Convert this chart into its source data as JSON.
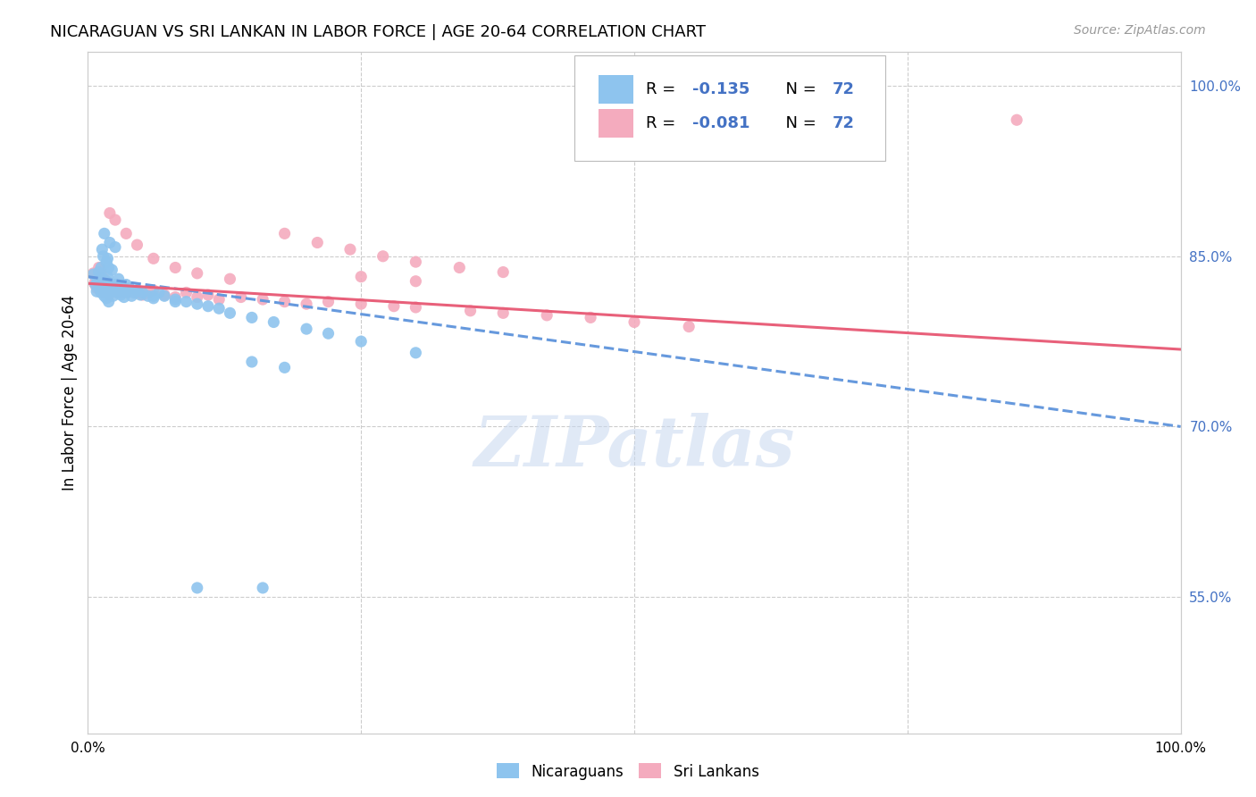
{
  "title": "NICARAGUAN VS SRI LANKAN IN LABOR FORCE | AGE 20-64 CORRELATION CHART",
  "source": "Source: ZipAtlas.com",
  "ylabel": "In Labor Force | Age 20-64",
  "xlim": [
    0.0,
    1.0
  ],
  "ylim": [
    0.43,
    1.03
  ],
  "color_nicaraguan": "#8EC4EE",
  "color_srilankan": "#F4ABBE",
  "color_trendline_nicaraguan": "#6699DD",
  "color_trendline_srilankan": "#E8607A",
  "color_grid": "#CCCCCC",
  "color_blue_text": "#4472C4",
  "watermark_color": "#C8D8F0",
  "background_color": "#FFFFFF",
  "nic_trend_start": 0.832,
  "nic_trend_end": 0.7,
  "sri_trend_start": 0.826,
  "sri_trend_end": 0.768,
  "nicaraguan_x": [
    0.005,
    0.007,
    0.008,
    0.009,
    0.01,
    0.01,
    0.011,
    0.012,
    0.013,
    0.013,
    0.014,
    0.015,
    0.015,
    0.016,
    0.017,
    0.017,
    0.018,
    0.018,
    0.019,
    0.02,
    0.02,
    0.021,
    0.022,
    0.023,
    0.025,
    0.027,
    0.028,
    0.03,
    0.032,
    0.033,
    0.035,
    0.038,
    0.04,
    0.042,
    0.045,
    0.048,
    0.05,
    0.055,
    0.06,
    0.065,
    0.07,
    0.08,
    0.09,
    0.1,
    0.11,
    0.12,
    0.13,
    0.15,
    0.17,
    0.2,
    0.22,
    0.25,
    0.3,
    0.15,
    0.18,
    0.013,
    0.015,
    0.018,
    0.02,
    0.025,
    0.012,
    0.014,
    0.017,
    0.019,
    0.022,
    0.028,
    0.035,
    0.045,
    0.06,
    0.08,
    0.1,
    0.16
  ],
  "nicaraguan_y": [
    0.834,
    0.825,
    0.819,
    0.828,
    0.836,
    0.822,
    0.83,
    0.818,
    0.825,
    0.831,
    0.82,
    0.827,
    0.815,
    0.822,
    0.828,
    0.813,
    0.819,
    0.832,
    0.81,
    0.826,
    0.818,
    0.823,
    0.82,
    0.815,
    0.825,
    0.818,
    0.822,
    0.816,
    0.82,
    0.814,
    0.819,
    0.822,
    0.815,
    0.818,
    0.82,
    0.816,
    0.818,
    0.815,
    0.813,
    0.818,
    0.815,
    0.812,
    0.81,
    0.808,
    0.806,
    0.804,
    0.8,
    0.796,
    0.792,
    0.786,
    0.782,
    0.775,
    0.765,
    0.757,
    0.752,
    0.856,
    0.87,
    0.848,
    0.862,
    0.858,
    0.84,
    0.85,
    0.845,
    0.84,
    0.838,
    0.83,
    0.825,
    0.82,
    0.815,
    0.81,
    0.558,
    0.558
  ],
  "srilankan_x": [
    0.005,
    0.006,
    0.007,
    0.008,
    0.009,
    0.01,
    0.011,
    0.012,
    0.013,
    0.014,
    0.015,
    0.016,
    0.017,
    0.018,
    0.019,
    0.02,
    0.022,
    0.025,
    0.028,
    0.03,
    0.033,
    0.036,
    0.04,
    0.045,
    0.05,
    0.055,
    0.06,
    0.07,
    0.08,
    0.09,
    0.1,
    0.11,
    0.12,
    0.14,
    0.16,
    0.18,
    0.2,
    0.22,
    0.25,
    0.28,
    0.3,
    0.35,
    0.38,
    0.42,
    0.46,
    0.5,
    0.55,
    0.01,
    0.012,
    0.015,
    0.018,
    0.022,
    0.027,
    0.03,
    0.18,
    0.21,
    0.24,
    0.27,
    0.3,
    0.34,
    0.38,
    0.25,
    0.3,
    0.85,
    0.02,
    0.025,
    0.035,
    0.045,
    0.06,
    0.08,
    0.1,
    0.13
  ],
  "srilankan_y": [
    0.835,
    0.826,
    0.828,
    0.822,
    0.83,
    0.826,
    0.824,
    0.832,
    0.82,
    0.825,
    0.818,
    0.822,
    0.826,
    0.82,
    0.816,
    0.824,
    0.82,
    0.822,
    0.818,
    0.82,
    0.822,
    0.818,
    0.82,
    0.818,
    0.816,
    0.818,
    0.82,
    0.816,
    0.814,
    0.818,
    0.814,
    0.816,
    0.812,
    0.814,
    0.812,
    0.81,
    0.808,
    0.81,
    0.808,
    0.806,
    0.805,
    0.802,
    0.8,
    0.798,
    0.796,
    0.792,
    0.788,
    0.84,
    0.836,
    0.83,
    0.826,
    0.824,
    0.82,
    0.818,
    0.87,
    0.862,
    0.856,
    0.85,
    0.845,
    0.84,
    0.836,
    0.832,
    0.828,
    0.97,
    0.888,
    0.882,
    0.87,
    0.86,
    0.848,
    0.84,
    0.835,
    0.83
  ]
}
